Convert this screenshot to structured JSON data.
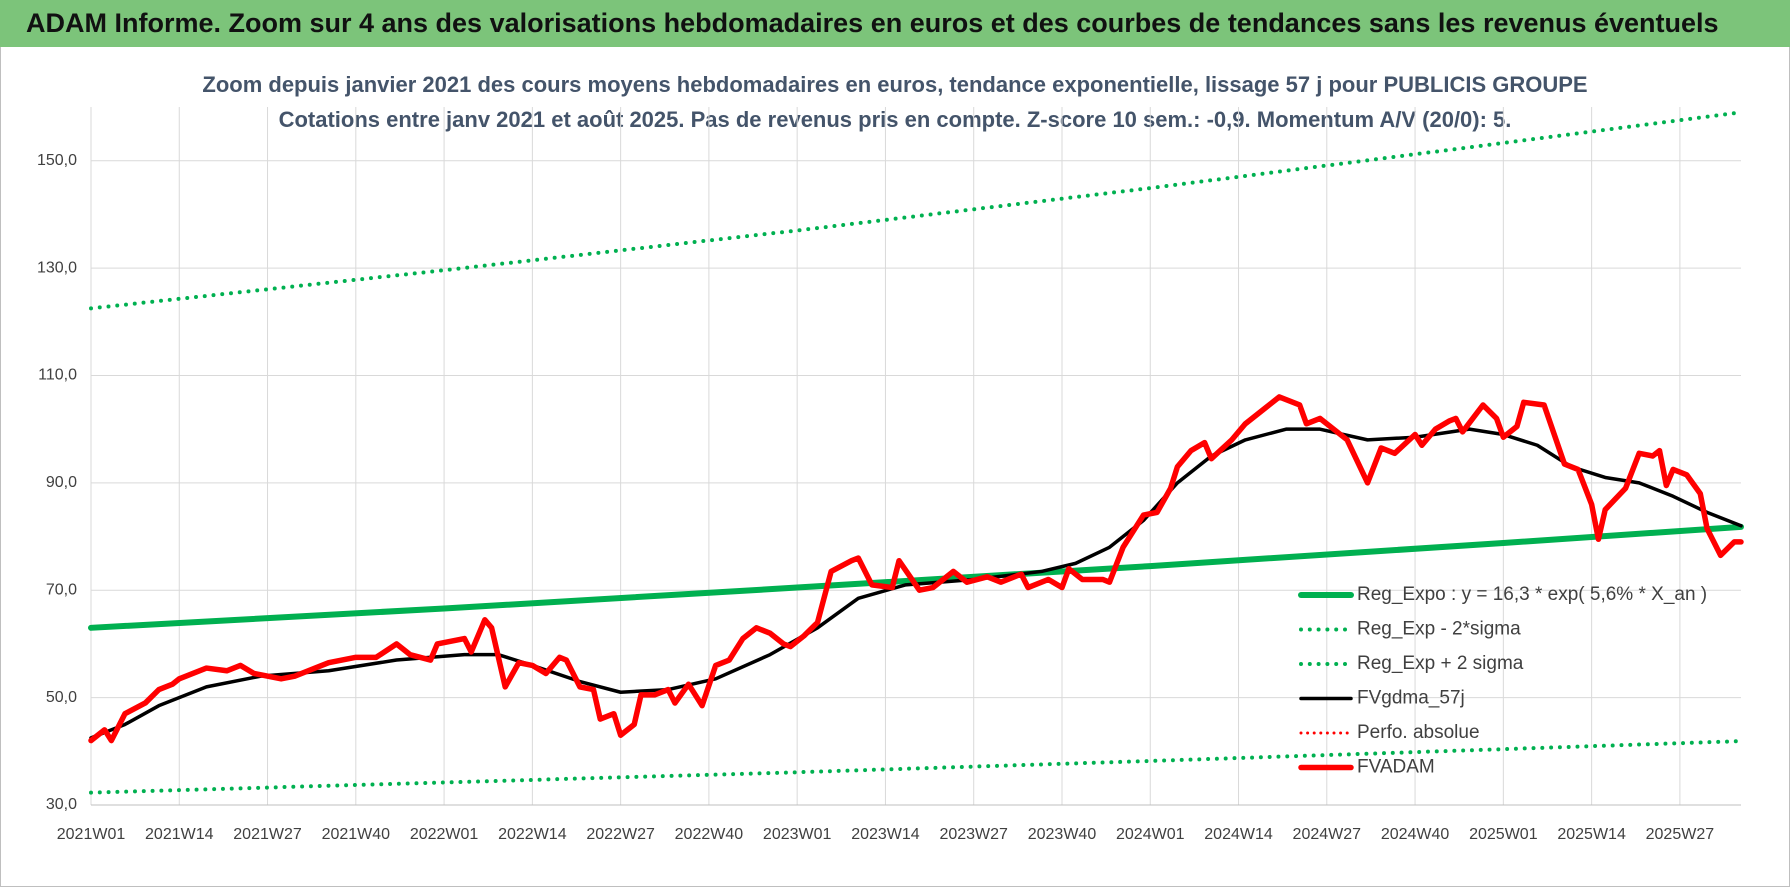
{
  "header": {
    "title": "ADAM Informe. Zoom sur 4 ans des valorisations hebdomadaires en euros et des courbes de tendances sans les revenus éventuels"
  },
  "chart_data": {
    "type": "line",
    "title": "Zoom depuis janvier 2021 des cours moyens hebdomadaires en euros, tendance exponentielle, lissage 57 j pour PUBLICIS GROUPE",
    "subtitle": "Cotations entre janv 2021 et août 2025.  Pas de revenus pris en compte. Z-score 10 sem.: -0,9. Momentum A/V (20/0): 5.",
    "xlim": [
      0,
      243
    ],
    "xticks": [
      {
        "value": 0,
        "label": "2021W01"
      },
      {
        "value": 13,
        "label": "2021W14"
      },
      {
        "value": 26,
        "label": "2021W27"
      },
      {
        "value": 39,
        "label": "2021W40"
      },
      {
        "value": 52,
        "label": "2022W01"
      },
      {
        "value": 65,
        "label": "2022W14"
      },
      {
        "value": 78,
        "label": "2022W27"
      },
      {
        "value": 91,
        "label": "2022W40"
      },
      {
        "value": 104,
        "label": "2023W01"
      },
      {
        "value": 117,
        "label": "2023W14"
      },
      {
        "value": 130,
        "label": "2023W27"
      },
      {
        "value": 143,
        "label": "2023W40"
      },
      {
        "value": 156,
        "label": "2024W01"
      },
      {
        "value": 169,
        "label": "2024W14"
      },
      {
        "value": 182,
        "label": "2024W27"
      },
      {
        "value": 195,
        "label": "2024W40"
      },
      {
        "value": 208,
        "label": "2025W01"
      },
      {
        "value": 221,
        "label": "2025W14"
      },
      {
        "value": 234,
        "label": "2025W27"
      }
    ],
    "ylim": [
      30,
      160
    ],
    "yticks": [
      {
        "value": 30,
        "label": "30,0"
      },
      {
        "value": 50,
        "label": "50,0"
      },
      {
        "value": 70,
        "label": "70,0"
      },
      {
        "value": 90,
        "label": "90,0"
      },
      {
        "value": 110,
        "label": "110,0"
      },
      {
        "value": 130,
        "label": "130,0"
      },
      {
        "value": 150,
        "label": "150,0"
      }
    ],
    "grid": true,
    "legend": "right",
    "series": [
      {
        "name": "Reg_Expo : y = 16,3 * exp( 5,6% *  X_an )",
        "color": "#00b050",
        "style": "solid",
        "width": 6,
        "x": [
          0,
          52,
          104,
          156,
          208,
          243
        ],
        "values": [
          63.0,
          66.6,
          70.5,
          74.5,
          78.8,
          81.8
        ]
      },
      {
        "name": "Reg_Exp - 2*sigma",
        "color": "#00b050",
        "style": "dotted",
        "width": 4,
        "x": [
          0,
          52,
          104,
          156,
          208,
          243
        ],
        "values": [
          32.3,
          34.2,
          36.1,
          38.2,
          40.4,
          41.9
        ]
      },
      {
        "name": "Reg_Exp + 2 sigma",
        "color": "#00b050",
        "style": "dotted",
        "width": 4,
        "x": [
          0,
          52,
          104,
          156,
          208,
          243
        ],
        "values": [
          122.5,
          129.6,
          137.0,
          144.9,
          153.3,
          159.0
        ]
      },
      {
        "name": "FVgdma_57j",
        "color": "#000000",
        "style": "solid",
        "width": 3.5,
        "x": [
          0,
          5,
          10,
          17,
          25,
          35,
          45,
          55,
          60,
          65,
          72,
          78,
          85,
          92,
          100,
          107,
          113,
          120,
          130,
          140,
          145,
          150,
          155,
          160,
          165,
          170,
          176,
          181,
          188,
          195,
          203,
          208,
          213,
          218,
          223,
          228,
          233,
          238,
          243
        ],
        "values": [
          42.5,
          45,
          48.5,
          52,
          54,
          55,
          57,
          58,
          58,
          56,
          53,
          51,
          51.5,
          53.5,
          58,
          63,
          68.5,
          71,
          72,
          73.5,
          75,
          78,
          83,
          90,
          95,
          98,
          100,
          100,
          98,
          98.5,
          100,
          99,
          97,
          93,
          91,
          90,
          87.5,
          84.5,
          82
        ]
      },
      {
        "name": "Perfo. absolue",
        "color": "#ff0000",
        "style": "dotted",
        "width": 3,
        "x": [],
        "values": []
      },
      {
        "name": "FVADAM",
        "color": "#ff0000",
        "style": "solid",
        "width": 5.5,
        "x": [
          0,
          2,
          3,
          5,
          8,
          10,
          12,
          13,
          17,
          20,
          22,
          24,
          28,
          30,
          33,
          35,
          39,
          42,
          45,
          47,
          50,
          51,
          55,
          56,
          58,
          59,
          61,
          63,
          65,
          67,
          69,
          70,
          72,
          74,
          75,
          77,
          78,
          80,
          81,
          83,
          85,
          86,
          88,
          90,
          92,
          94,
          96,
          98,
          100,
          102,
          103,
          105,
          107,
          109,
          112,
          113,
          115,
          118,
          119,
          122,
          124,
          127,
          129,
          132,
          134,
          137,
          138,
          141,
          143,
          144,
          146,
          149,
          150,
          152,
          154,
          155,
          157,
          159,
          160,
          162,
          164,
          165,
          168,
          170,
          173,
          175,
          178,
          179,
          181,
          183,
          185,
          188,
          190,
          192,
          195,
          196,
          198,
          200,
          201,
          202,
          205,
          207,
          208,
          210,
          211,
          214,
          217,
          219,
          221,
          222,
          223,
          226,
          228,
          230,
          231,
          232,
          233,
          235,
          237,
          238,
          240,
          242,
          243
        ],
        "values": [
          42,
          44,
          42,
          47,
          49,
          51.5,
          52.5,
          53.5,
          55.5,
          55,
          56,
          54.5,
          53.5,
          54,
          55.5,
          56.5,
          57.5,
          57.5,
          60,
          58,
          57,
          60,
          61,
          58.5,
          64.5,
          63,
          52,
          56.5,
          56,
          54.5,
          57.5,
          57,
          52,
          51.5,
          46,
          47,
          43,
          45,
          50.5,
          50.5,
          51.5,
          49,
          52.5,
          48.5,
          56,
          57,
          61,
          63,
          62,
          60,
          59.5,
          61.5,
          64,
          73.5,
          75.5,
          76,
          71,
          70.5,
          75.5,
          70,
          70.5,
          73.5,
          71.5,
          72.5,
          71.5,
          73,
          70.5,
          72,
          70.5,
          74,
          72,
          72,
          71.5,
          78,
          82,
          84,
          84.5,
          89,
          93,
          96,
          97.5,
          94.5,
          98,
          101,
          104,
          106,
          104.5,
          101,
          102,
          100,
          98,
          90,
          96.5,
          95.5,
          99,
          97,
          100,
          101.5,
          102,
          99.5,
          104.5,
          102,
          98.5,
          100.5,
          105,
          104.5,
          93.5,
          92.5,
          86,
          79.5,
          85,
          89,
          95.5,
          95,
          96,
          89.5,
          92.5,
          91.5,
          88,
          81.5,
          76.5,
          79,
          79
        ]
      }
    ]
  }
}
